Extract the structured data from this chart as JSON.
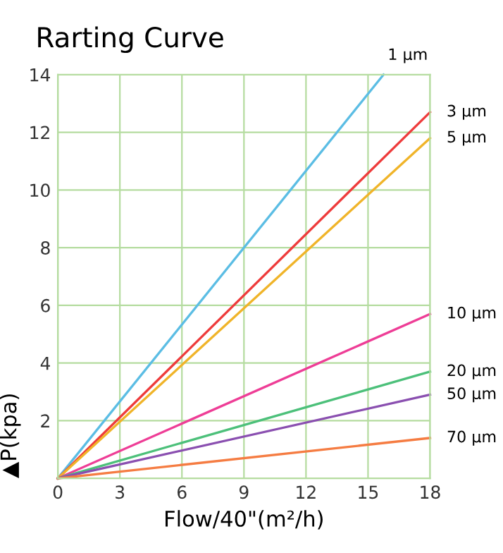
{
  "chart_data": {
    "type": "line",
    "title": "Rarting Curve",
    "xlabel": "Flow/40\"(m²/h)",
    "ylabel": "▲P(kpa)",
    "series": [
      {
        "name": "1 µm",
        "color": "#5bbde4",
        "x": [
          0,
          15.75
        ],
        "values": [
          0,
          14
        ]
      },
      {
        "name": "3 µm",
        "color": "#ee3b3b",
        "x": [
          0,
          18
        ],
        "values": [
          0,
          12.7
        ]
      },
      {
        "name": "5 µm",
        "color": "#f0b429",
        "x": [
          0,
          18
        ],
        "values": [
          0,
          11.8
        ]
      },
      {
        "name": "10 µm",
        "color": "#ee3d96",
        "x": [
          0,
          18
        ],
        "values": [
          0,
          5.7
        ]
      },
      {
        "name": "20 µm",
        "color": "#4cc07a",
        "x": [
          0,
          18
        ],
        "values": [
          0,
          3.7
        ]
      },
      {
        "name": "50 µm",
        "color": "#8a4fb0",
        "x": [
          0,
          18
        ],
        "values": [
          0,
          2.9
        ]
      },
      {
        "name": "70 µm",
        "color": "#f57c42",
        "x": [
          0,
          18
        ],
        "values": [
          0,
          1.4
        ]
      }
    ],
    "xlim": [
      0,
      18
    ],
    "ylim": [
      0,
      14
    ],
    "xticks": [
      0,
      3,
      6,
      9,
      12,
      15,
      18
    ],
    "yticks": [
      {
        "value": 0,
        "label": null
      },
      2,
      4,
      6,
      8,
      10,
      12,
      14
    ],
    "grid": true,
    "legend": false,
    "marker": "none",
    "line_style": "solid"
  }
}
